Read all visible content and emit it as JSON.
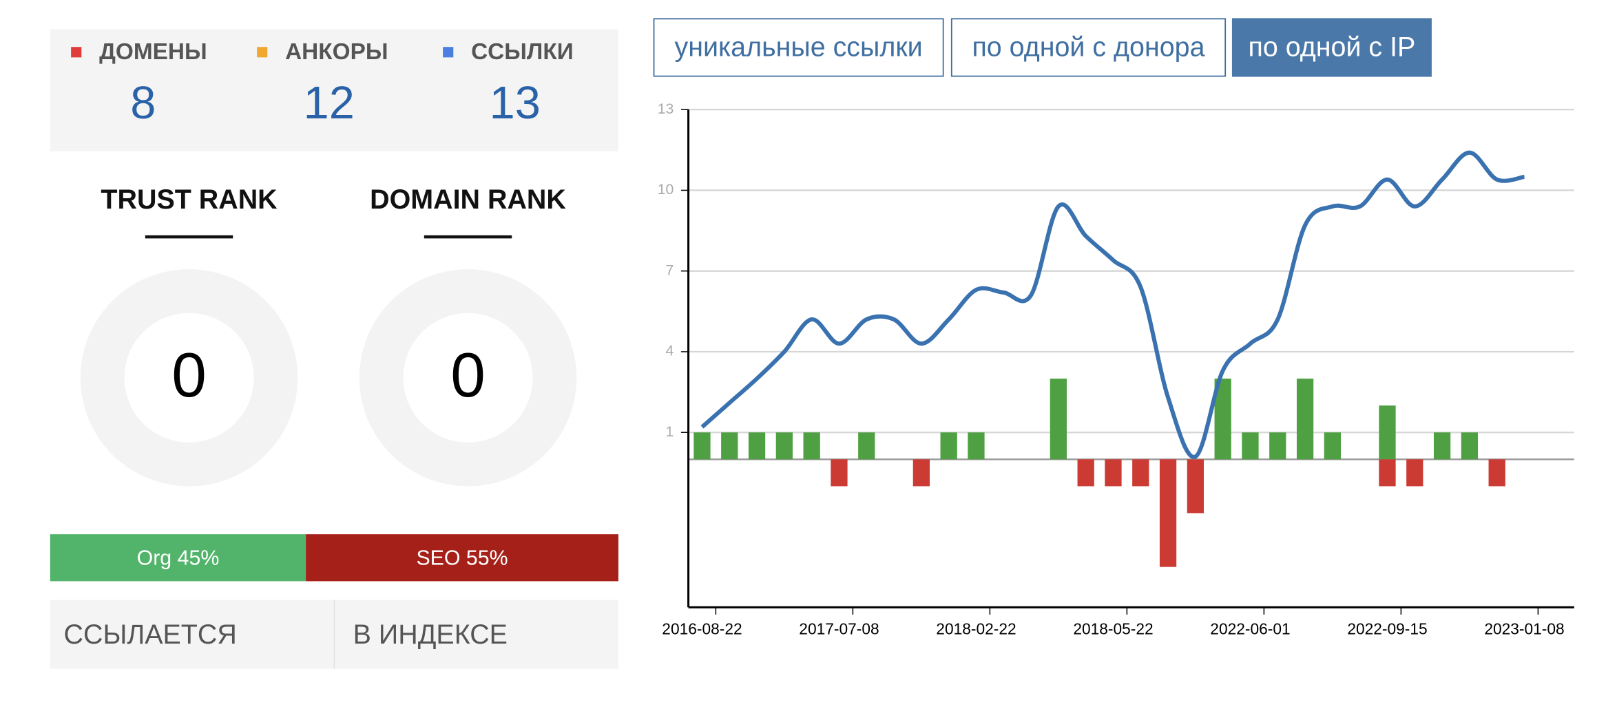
{
  "stats": [
    {
      "label": "ДОМЕНЫ",
      "value": 8,
      "color": "#e03c3c"
    },
    {
      "label": "АНКОРЫ",
      "value": 12,
      "color": "#f0a830"
    },
    {
      "label": "ССЫЛКИ",
      "value": 13,
      "color": "#4a7ee0"
    }
  ],
  "ranks": [
    {
      "title": "TRUST RANK",
      "value": 0
    },
    {
      "title": "DOMAIN RANK",
      "value": 0
    }
  ],
  "split": [
    {
      "label": "Org 45%",
      "value": 45,
      "color": "#52b46a"
    },
    {
      "label": "SEO 55%",
      "value": 55,
      "color": "#a52019"
    }
  ],
  "links": [
    "ССЫЛАЕТСЯ",
    "В ИНДЕКСЕ"
  ],
  "tabs": [
    {
      "label": "уникальные ссылки",
      "active": false
    },
    {
      "label": "по одной с донора",
      "active": false
    },
    {
      "label": "по одной с IP",
      "active": true
    }
  ],
  "chart_data": {
    "type": "combo",
    "categories": [
      "2016-08-22",
      null,
      null,
      null,
      null,
      "2017-07-08",
      null,
      null,
      null,
      null,
      "2018-02-22",
      null,
      null,
      null,
      null,
      "2018-05-22",
      null,
      null,
      null,
      null,
      "2022-06-01",
      null,
      null,
      null,
      null,
      "2022-09-15",
      null,
      null,
      null,
      null,
      "2023-01-08"
    ],
    "series": [
      {
        "type": "bar",
        "color": "#4fa043",
        "values": [
          1,
          1,
          1,
          1,
          1,
          0,
          1,
          0,
          0,
          1,
          1,
          0,
          0,
          3,
          0,
          0,
          0,
          0,
          0,
          3,
          1,
          1,
          3,
          1,
          0,
          2,
          0,
          1,
          1,
          0,
          0
        ]
      },
      {
        "type": "bar",
        "color": "#cc3a34",
        "values": [
          0,
          0,
          0,
          0,
          0,
          -1,
          0,
          0,
          -1,
          0,
          0,
          0,
          0,
          0,
          -1,
          -1,
          -1,
          -4,
          -2,
          0,
          0,
          0,
          0,
          0,
          0,
          -1,
          -1,
          0,
          0,
          -1,
          0
        ]
      },
      {
        "type": "line",
        "color": "#3a72b0",
        "values": [
          1.2,
          2.1,
          3.0,
          4.0,
          5.2,
          4.3,
          5.2,
          5.2,
          4.3,
          5.2,
          6.3,
          6.2,
          6.1,
          9.4,
          8.3,
          7.4,
          6.4,
          2.3,
          0.1,
          3.3,
          4.3,
          5.2,
          8.7,
          9.4,
          9.4,
          10.4,
          9.4,
          10.4,
          11.4,
          10.4,
          10.5
        ]
      }
    ],
    "ylim": [
      -5.5,
      13
    ],
    "yticks": [
      1,
      4,
      7,
      10,
      13
    ],
    "grid": true
  }
}
